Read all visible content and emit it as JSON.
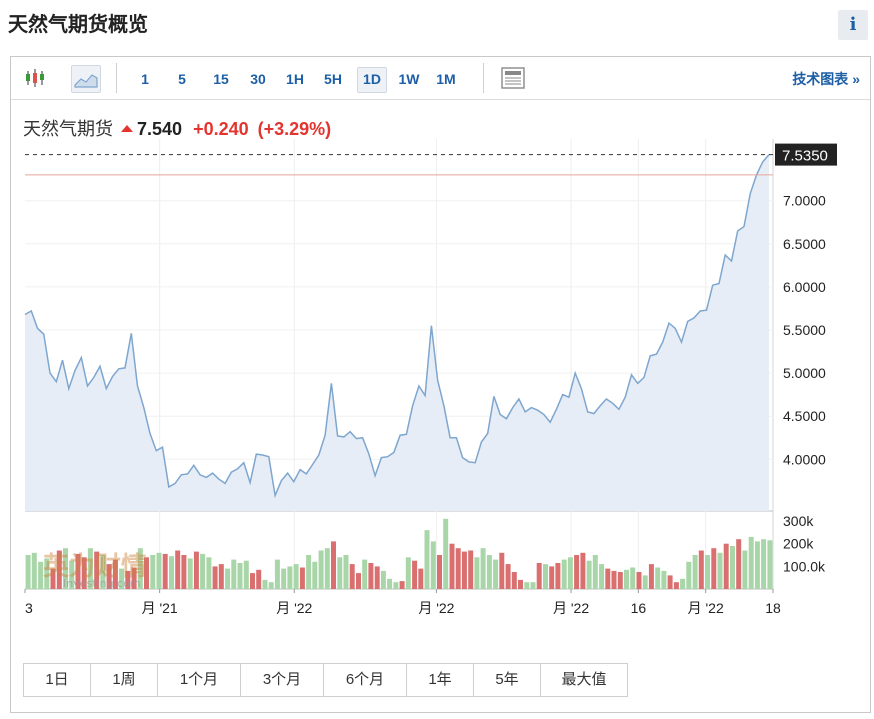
{
  "page": {
    "title": "天然气期货概览",
    "info_label": "i"
  },
  "toolbar": {
    "timeframes": [
      "1",
      "5",
      "15",
      "30",
      "1H",
      "5H",
      "1D",
      "1W",
      "1M"
    ],
    "active_timeframe": "1D",
    "tech_link": "技术图表 »",
    "icons": [
      "candlestick-icon",
      "area-chart-icon",
      "table-view-icon"
    ]
  },
  "quote": {
    "name": "天然气期货",
    "price": "7.540",
    "change": "+0.240",
    "change_pct": "(+3.29%)",
    "direction": "up"
  },
  "colors": {
    "line": "#7ea6cf",
    "area": "#e6edf6",
    "vol_up": "#a9d6a9",
    "vol_down": "#d9706f",
    "price_tag": "#222222",
    "prev_close": "#e8a59c",
    "accent": "#1d5fa6",
    "up": "#e3342f"
  },
  "watermark": {
    "text": "英为财情",
    "subtext": "Investing.com"
  },
  "range_buttons": [
    "1日",
    "1周",
    "1个月",
    "3个月",
    "6个月",
    "1年",
    "5年",
    "最大值"
  ],
  "chart_data": {
    "type": "area",
    "current_price_label": "7.5350",
    "prev_close": 7.3,
    "y_ticks": [
      "7.0000",
      "6.5000",
      "6.0000",
      "5.5000",
      "5.0000",
      "4.5000",
      "4.0000"
    ],
    "y_tick_values": [
      7.0,
      6.5,
      6.0,
      5.5,
      5.0,
      4.5,
      4.0
    ],
    "ylim": [
      3.4,
      7.6
    ],
    "x_labels": [
      "3",
      "月 '21",
      "月 '22",
      "月 '22",
      "月 '22",
      "16",
      "月 '22",
      "18"
    ],
    "x_label_positions": [
      0,
      18,
      36,
      55,
      73,
      82,
      91,
      100
    ],
    "series": [
      {
        "values": [
          5.68,
          5.72,
          5.52,
          5.45,
          5.0,
          4.9,
          5.15,
          4.82,
          5.03,
          5.18,
          4.85,
          4.95,
          5.08,
          4.82,
          4.96,
          5.05,
          5.06,
          5.46,
          4.85,
          4.6,
          4.3,
          4.1,
          4.14,
          3.68,
          3.72,
          3.82,
          3.83,
          3.93,
          3.82,
          3.79,
          3.84,
          3.77,
          3.72,
          3.85,
          3.89,
          3.96,
          3.73,
          4.06,
          4.05,
          4.03,
          3.58,
          3.75,
          3.84,
          3.74,
          3.88,
          3.83,
          3.94,
          4.05,
          4.28,
          4.88,
          4.27,
          4.26,
          4.32,
          4.24,
          4.25,
          4.06,
          3.81,
          4.02,
          4.03,
          4.08,
          4.28,
          4.29,
          4.62,
          4.85,
          4.74,
          5.55,
          4.92,
          4.62,
          4.25,
          4.25,
          4.02,
          3.97,
          3.96,
          4.2,
          4.3,
          4.73,
          4.52,
          4.47,
          4.6,
          4.7,
          4.55,
          4.6,
          4.57,
          4.52,
          4.43,
          4.58,
          4.75,
          4.72,
          5.0,
          4.82,
          4.55,
          4.53,
          4.62,
          4.7,
          4.65,
          4.58,
          4.72,
          4.98,
          4.88,
          4.95,
          5.2,
          5.22,
          5.36,
          5.58,
          5.52,
          5.36,
          5.6,
          5.64,
          5.72,
          5.73,
          6.02,
          6.04,
          6.37,
          6.3,
          6.65,
          6.7,
          7.08,
          7.3,
          7.45,
          7.535
        ]
      }
    ],
    "volume": {
      "y_ticks": [
        "300k",
        "200k",
        "100.0k"
      ],
      "y_tick_values": [
        300000,
        200000,
        100000
      ],
      "ylim": [
        0,
        340000
      ],
      "values": [
        150000,
        160000,
        120000,
        135000,
        90000,
        170000,
        180000,
        125000,
        155000,
        140000,
        180000,
        165000,
        150000,
        110000,
        130000,
        90000,
        80000,
        95000,
        180000,
        140000,
        150000,
        160000,
        155000,
        145000,
        170000,
        150000,
        135000,
        165000,
        155000,
        140000,
        100000,
        110000,
        90000,
        130000,
        115000,
        125000,
        70000,
        85000,
        40000,
        30000,
        130000,
        90000,
        100000,
        110000,
        95000,
        150000,
        120000,
        170000,
        180000,
        210000,
        140000,
        150000,
        110000,
        70000,
        130000,
        115000,
        100000,
        80000,
        45000,
        30000,
        35000,
        140000,
        125000,
        90000,
        260000,
        210000,
        150000,
        310000,
        200000,
        180000,
        165000,
        170000,
        140000,
        180000,
        150000,
        130000,
        160000,
        110000,
        75000,
        40000,
        30000,
        30000,
        115000,
        110000,
        100000,
        115000,
        130000,
        140000,
        150000,
        160000,
        125000,
        150000,
        110000,
        90000,
        80000,
        75000,
        85000,
        95000,
        75000,
        60000,
        110000,
        95000,
        80000,
        60000,
        30000,
        45000,
        120000,
        150000,
        170000,
        150000,
        180000,
        160000,
        200000,
        190000,
        220000,
        170000,
        230000,
        210000,
        220000,
        215000
      ],
      "up": [
        1,
        1,
        1,
        1,
        0,
        0,
        1,
        1,
        0,
        0,
        1,
        0,
        1,
        0,
        0,
        1,
        0,
        0,
        1,
        0,
        1,
        1,
        0,
        1,
        0,
        0,
        1,
        0,
        1,
        1,
        0,
        0,
        1,
        1,
        1,
        1,
        0,
        0,
        1,
        1,
        1,
        1,
        1,
        1,
        0,
        1,
        1,
        1,
        1,
        0,
        1,
        1,
        0,
        0,
        1,
        0,
        0,
        1,
        1,
        1,
        0,
        1,
        0,
        0,
        1,
        1,
        0,
        1,
        0,
        0,
        0,
        0,
        1,
        1,
        1,
        1,
        0,
        0,
        0,
        0,
        1,
        1,
        0,
        1,
        0,
        0,
        1,
        1,
        0,
        0,
        1,
        1,
        1,
        0,
        0,
        0,
        1,
        1,
        0,
        1,
        0,
        1,
        1,
        0,
        0,
        1,
        1,
        1,
        0,
        1,
        0,
        1,
        0,
        1,
        0,
        1,
        1,
        1,
        1,
        1
      ]
    }
  }
}
